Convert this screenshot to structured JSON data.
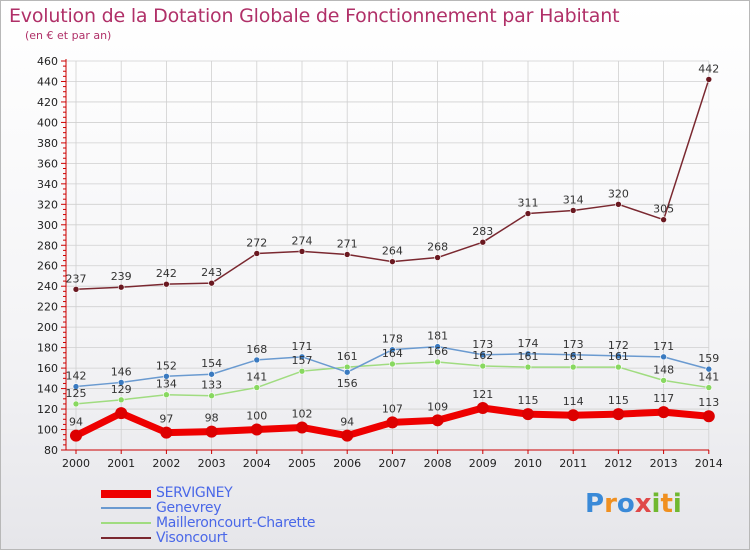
{
  "title": "Evolution de la Dotation Globale de Fonctionnement par Habitant",
  "subtitle": "(en € et par an)",
  "logo_text": "Proxiti",
  "colors": {
    "title": "#b03068",
    "axis": "#cc0000",
    "grid": "#d0d0d0",
    "legend_text": "#4a68e8",
    "tick_text": "#222222",
    "value_text": "#333333"
  },
  "chart_data": {
    "type": "line",
    "title": "Evolution de la Dotation Globale de Fonctionnement par Habitant",
    "subtitle": "(en € et par an)",
    "xlabel": "",
    "ylabel": "",
    "ylim": [
      80,
      460
    ],
    "y_ticks": [
      80,
      100,
      120,
      140,
      160,
      180,
      200,
      220,
      240,
      260,
      280,
      300,
      320,
      340,
      360,
      380,
      400,
      420,
      440,
      460
    ],
    "x": [
      "2000",
      "2001",
      "2002",
      "2003",
      "2004",
      "2005",
      "2006",
      "2007",
      "2008",
      "2009",
      "2010",
      "2011",
      "2012",
      "2013",
      "2014"
    ],
    "grid": true,
    "legend_position": "bottom-left",
    "series": [
      {
        "name": "SERVIGNEY",
        "color": "#ee0000",
        "marker_color": "#dd0000",
        "line_width": 7,
        "marker_radius": 6,
        "values": [
          94,
          116,
          97,
          98,
          100,
          102,
          94,
          107,
          109,
          121,
          115,
          114,
          115,
          117,
          113
        ],
        "labels": [
          "94",
          "",
          "97",
          "98",
          "100",
          "102",
          "94",
          "107",
          "109",
          "121",
          "115",
          "114",
          "115",
          "117",
          "113"
        ],
        "label_pos": [
          "above",
          "above",
          "above",
          "above",
          "above",
          "above",
          "above",
          "above",
          "above",
          "above",
          "above",
          "above",
          "above",
          "above",
          "above"
        ]
      },
      {
        "name": "Genevrey",
        "color": "#6a9ad0",
        "marker_color": "#3a7ac0",
        "line_width": 1.5,
        "marker_radius": 3,
        "values": [
          142,
          146,
          152,
          154,
          168,
          171,
          156,
          178,
          181,
          173,
          174,
          173,
          172,
          171,
          159
        ],
        "labels": [
          "142",
          "146",
          "152",
          "154",
          "168",
          "171",
          "156",
          "178",
          "181",
          "173",
          "174",
          "173",
          "172",
          "171",
          "159"
        ],
        "label_pos": [
          "above",
          "above",
          "above",
          "above",
          "above",
          "above",
          "below",
          "above",
          "above",
          "above",
          "above",
          "above",
          "above",
          "above",
          "above"
        ]
      },
      {
        "name": "Mailleroncourt-Charette",
        "color": "#a0dc80",
        "marker_color": "#88d860",
        "line_width": 1.5,
        "marker_radius": 3,
        "values": [
          125,
          129,
          134,
          133,
          141,
          157,
          161,
          164,
          166,
          162,
          161,
          161,
          161,
          148,
          141
        ],
        "labels": [
          "125",
          "129",
          "134",
          "133",
          "141",
          "157",
          "161",
          "164",
          "166",
          "162",
          "161",
          "161",
          "161",
          "148",
          "141"
        ],
        "label_pos": [
          "above",
          "above",
          "above",
          "above",
          "above",
          "above",
          "above",
          "above",
          "above",
          "above",
          "above",
          "above",
          "above",
          "above",
          "above"
        ]
      },
      {
        "name": "Visoncourt",
        "color": "#7a2830",
        "marker_color": "#6a1820",
        "line_width": 1.5,
        "marker_radius": 3,
        "values": [
          237,
          239,
          242,
          243,
          272,
          274,
          271,
          264,
          268,
          283,
          311,
          314,
          320,
          305,
          442
        ],
        "labels": [
          "237",
          "239",
          "242",
          "243",
          "272",
          "274",
          "271",
          "264",
          "268",
          "283",
          "311",
          "314",
          "320",
          "305",
          "442"
        ],
        "label_pos": [
          "above",
          "above",
          "above",
          "above",
          "above",
          "above",
          "above",
          "above",
          "above",
          "above",
          "above",
          "above",
          "above",
          "above",
          "above"
        ]
      }
    ]
  }
}
